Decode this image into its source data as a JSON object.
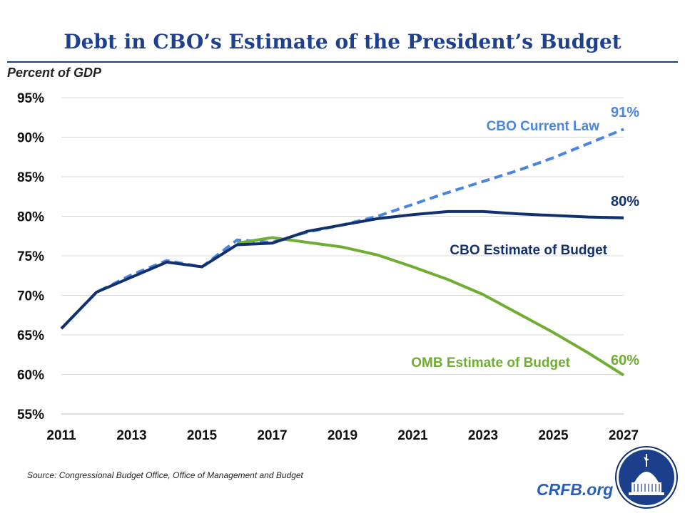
{
  "title": "Debt in CBO’s Estimate of the President’s Budget",
  "source": "Source: Congressional Budget Office, Office of Management and Budget",
  "brand": "CRFB.org",
  "logo": "CRFB capitol dome seal",
  "chart_data": {
    "type": "line",
    "title": "Debt in CBO’s Estimate of the President’s Budget",
    "ylabel": "Percent of GDP",
    "xlabel": "",
    "ylim": [
      55,
      95
    ],
    "xlim": [
      2011,
      2027
    ],
    "yticks": [
      "55%",
      "60%",
      "65%",
      "70%",
      "75%",
      "80%",
      "85%",
      "90%",
      "95%"
    ],
    "ytick_values": [
      55,
      60,
      65,
      70,
      75,
      80,
      85,
      90,
      95
    ],
    "xticks": [
      "2011",
      "2013",
      "2015",
      "2017",
      "2019",
      "2021",
      "2023",
      "2025",
      "2027"
    ],
    "xtick_values": [
      2011,
      2013,
      2015,
      2017,
      2019,
      2021,
      2023,
      2025,
      2027
    ],
    "grid": "horizontal",
    "series": [
      {
        "name": "CBO Current Law",
        "color": "#4a86e0",
        "style": "dashed",
        "end_label": "91%",
        "x": [
          2011,
          2012,
          2013,
          2014,
          2015,
          2016,
          2017,
          2018,
          2019,
          2020,
          2021,
          2022,
          2023,
          2024,
          2025,
          2026,
          2027
        ],
        "values": [
          65.8,
          70.4,
          72.6,
          74.4,
          73.6,
          77.0,
          76.7,
          78.0,
          78.9,
          80.0,
          81.5,
          83.0,
          84.4,
          85.8,
          87.4,
          89.2,
          91.0
        ]
      },
      {
        "name": "OMB Estimate of Budget",
        "color": "#70ad33",
        "style": "solid",
        "end_label": "60%",
        "x": [
          2016,
          2017,
          2018,
          2019,
          2020,
          2021,
          2022,
          2023,
          2024,
          2025,
          2026,
          2027
        ],
        "values": [
          76.6,
          77.3,
          76.7,
          76.1,
          75.1,
          73.6,
          72.0,
          70.1,
          67.7,
          65.3,
          62.7,
          59.9
        ]
      },
      {
        "name": "CBO Estimate of Budget",
        "color": "#13306e",
        "style": "solid",
        "end_label": "80%",
        "x": [
          2011,
          2012,
          2013,
          2014,
          2015,
          2016,
          2017,
          2018,
          2019,
          2020,
          2021,
          2022,
          2023,
          2024,
          2025,
          2026,
          2027
        ],
        "values": [
          65.8,
          70.4,
          72.3,
          74.2,
          73.6,
          76.4,
          76.6,
          78.1,
          78.9,
          79.7,
          80.2,
          80.6,
          80.6,
          80.3,
          80.1,
          79.9,
          79.8
        ]
      }
    ]
  }
}
